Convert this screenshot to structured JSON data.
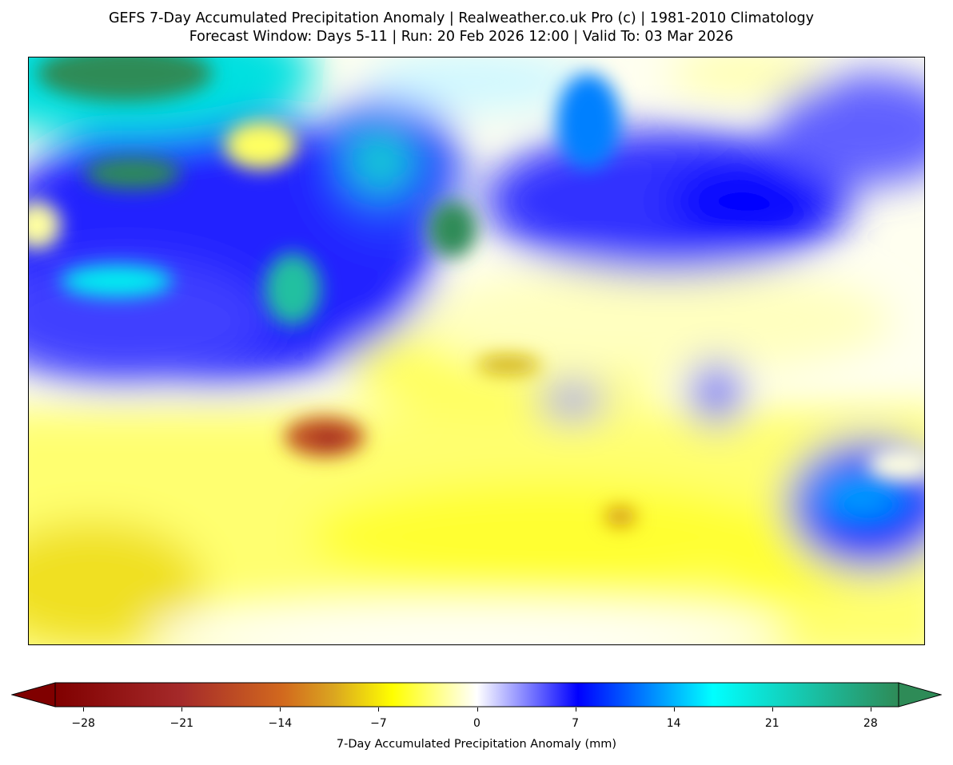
{
  "title_line1": "GEFS 7-Day Accumulated Precipitation Anomaly | Realweather.co.uk Pro (c) | 1981-2010 Climatology",
  "title_line2": "Forecast Window: Days 5-11 | Run: 20 Feb 2026 12:00 | Valid To: 03 Mar 2026",
  "colorbar": {
    "label": "7-Day Accumulated Precipitation Anomaly (mm)",
    "range": [
      -30,
      30
    ],
    "ticks": [
      "−28",
      "−21",
      "−14",
      "−7",
      "0",
      "7",
      "14",
      "21",
      "28"
    ],
    "tick_values": [
      -28,
      -21,
      -14,
      -7,
      0,
      7,
      14,
      21,
      28
    ],
    "colors": [
      "#800000",
      "#a52a2a",
      "#d2691e",
      "#daa520",
      "#ffff00",
      "#ffffff",
      "#0000ff",
      "#00ffff",
      "#2e8b57"
    ]
  }
}
